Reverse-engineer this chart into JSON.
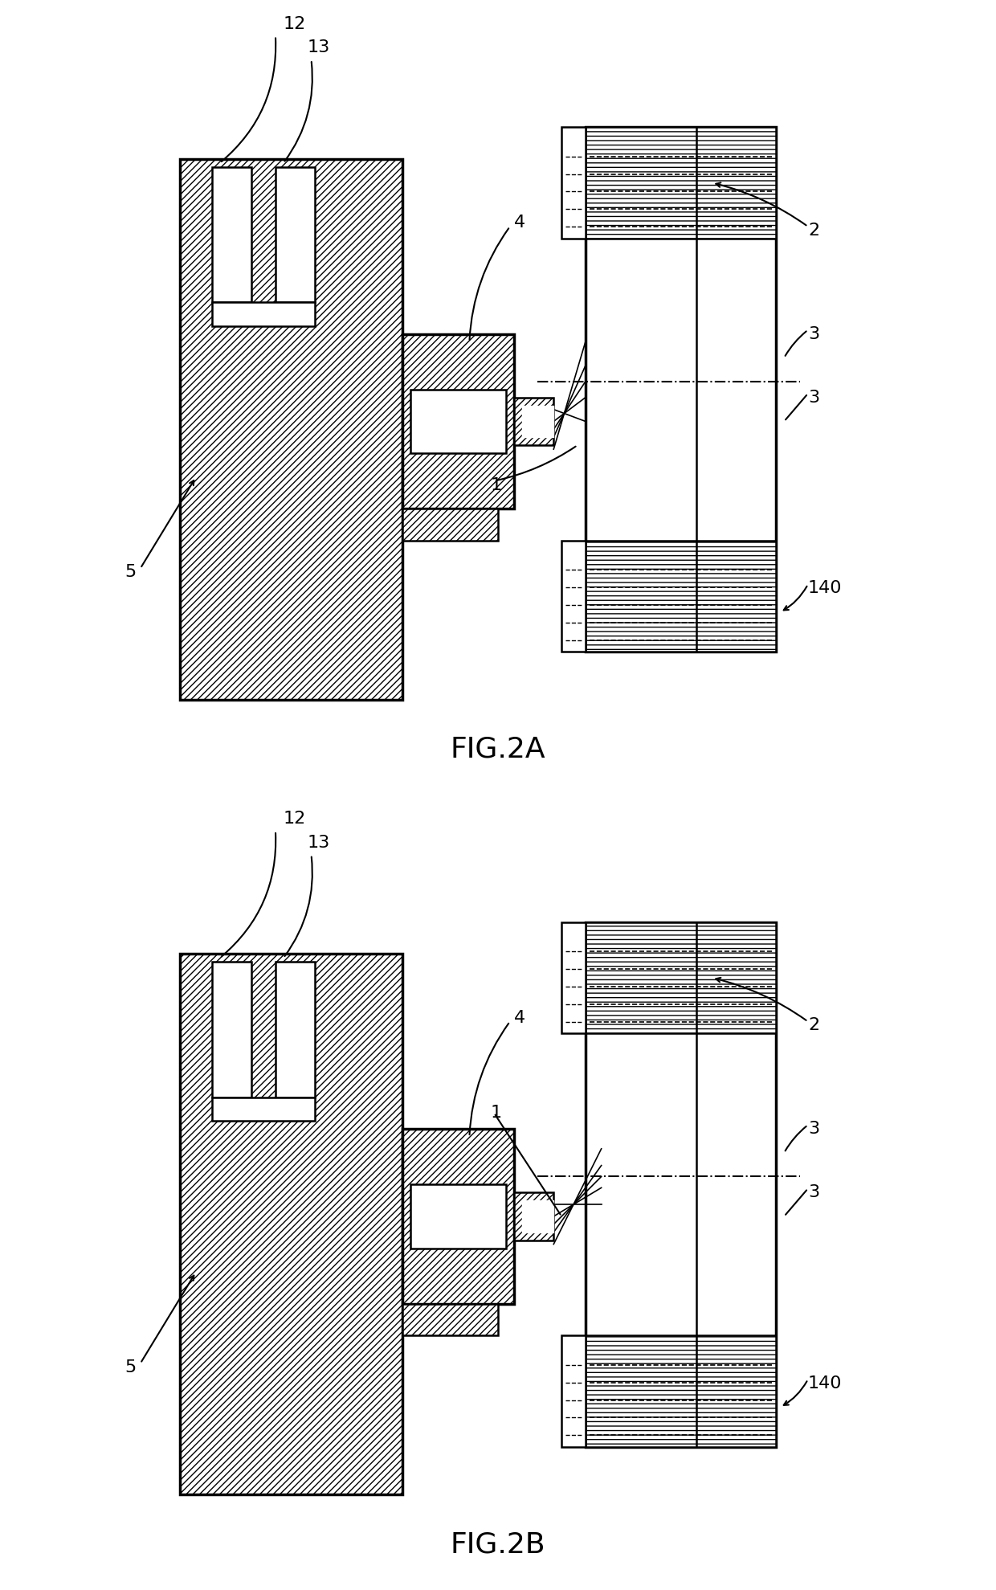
{
  "fig_width": 12.4,
  "fig_height": 19.79,
  "bg_color": "#ffffff",
  "lw_thick": 2.5,
  "lw_med": 1.8,
  "lw_thin": 1.2,
  "label_fontsize": 16,
  "caption_fontsize": 26,
  "fig2a_caption": "FIG.2A",
  "fig2b_caption": "FIG.2B"
}
